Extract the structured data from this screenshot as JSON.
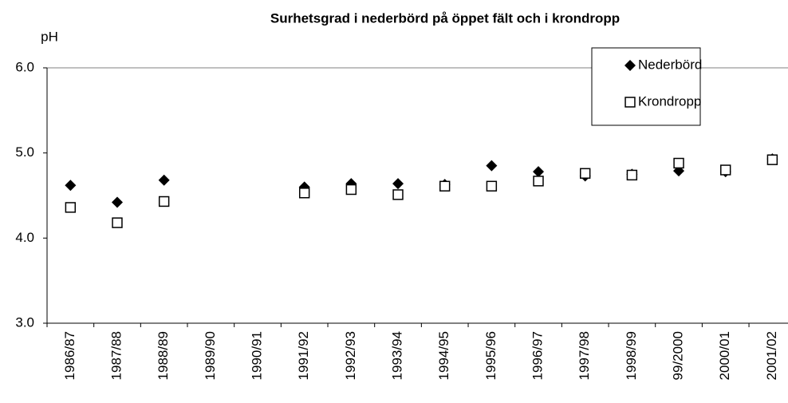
{
  "chart_data": {
    "type": "scatter",
    "title": "Surhetsgrad i nederbörd på öppet fält och i krondropp",
    "y_label": "pH",
    "categories": [
      "1986/87",
      "1987/88",
      "1988/89",
      "1989/90",
      "1990/91",
      "1991/92",
      "1992/93",
      "1993/94",
      "1994/95",
      "1995/96",
      "1996/97",
      "1997/98",
      "1998/99",
      "99/2000",
      "2000/01",
      "2001/02"
    ],
    "series": [
      {
        "name": "Nederbörd",
        "color": "#000000",
        "marker": "diamond",
        "values": [
          4.62,
          4.42,
          4.68,
          null,
          null,
          4.6,
          4.64,
          4.64,
          4.63,
          4.85,
          4.78,
          4.73,
          4.75,
          4.79,
          4.78,
          4.93
        ]
      },
      {
        "name": "Krondropp",
        "color": "#000000",
        "marker": "square",
        "values": [
          4.36,
          4.18,
          4.43,
          null,
          null,
          4.53,
          4.57,
          4.51,
          4.61,
          4.61,
          4.67,
          4.76,
          4.74,
          4.88,
          4.8,
          4.92
        ]
      }
    ],
    "ylim": [
      3,
      6
    ],
    "yticks": [
      {
        "value": 3,
        "label": "3.0"
      },
      {
        "value": 4,
        "label": "4.0"
      },
      {
        "value": 5,
        "label": "5.0"
      },
      {
        "value": 6,
        "label": "6.0"
      }
    ],
    "grid": false,
    "legend": "top-right"
  }
}
